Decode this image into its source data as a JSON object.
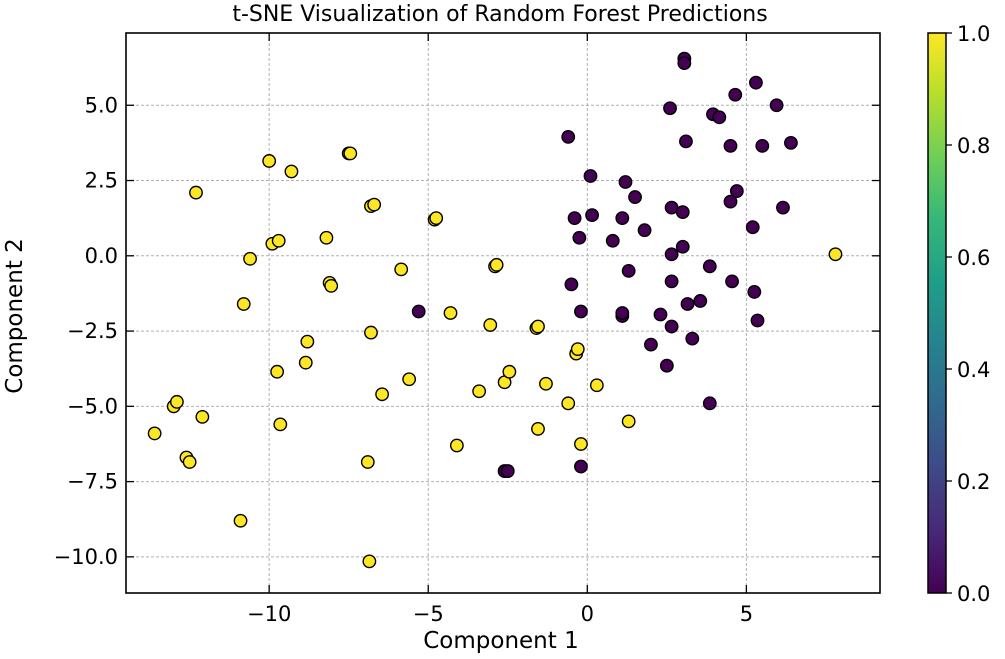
{
  "chart_data": {
    "type": "scatter",
    "title": "t-SNE Visualization of Random Forest Predictions",
    "xlabel": "Component 1",
    "ylabel": "Component 2",
    "xlim": [
      -14.5,
      9.2
    ],
    "ylim": [
      -11.2,
      7.4
    ],
    "xticks": [
      -10,
      -5,
      0,
      5
    ],
    "xtick_labels": [
      "−10",
      "−5",
      "0",
      "5"
    ],
    "yticks": [
      -10.0,
      -7.5,
      -5.0,
      -2.5,
      0.0,
      2.5,
      5.0
    ],
    "ytick_labels": [
      "−10.0",
      "−7.5",
      "−5.0",
      "−2.5",
      "0.0",
      "2.5",
      "5.0"
    ],
    "grid": true,
    "colorbar": {
      "label": "",
      "range": [
        0.0,
        1.0
      ],
      "ticks": [
        0.0,
        0.2,
        0.4,
        0.6,
        0.8,
        1.0
      ],
      "tick_labels": [
        "0.0",
        "0.2",
        "0.4",
        "0.6",
        "0.8",
        "1.0"
      ],
      "colormap": "viridis",
      "stops": [
        "#440154",
        "#482878",
        "#3e4989",
        "#31688e",
        "#26828e",
        "#1f9e89",
        "#35b779",
        "#6ece58",
        "#b5de2b",
        "#fde725"
      ]
    },
    "class_colors": {
      "0": "#440154",
      "1": "#fde725"
    },
    "points": [
      {
        "x": -13.6,
        "y": -5.9,
        "c": 1
      },
      {
        "x": -13.0,
        "y": -5.0,
        "c": 1
      },
      {
        "x": -12.9,
        "y": -4.85,
        "c": 1
      },
      {
        "x": -12.6,
        "y": -6.7,
        "c": 1
      },
      {
        "x": -12.5,
        "y": -6.85,
        "c": 1
      },
      {
        "x": -12.3,
        "y": 2.1,
        "c": 1
      },
      {
        "x": -12.1,
        "y": -5.35,
        "c": 1
      },
      {
        "x": -10.9,
        "y": -8.8,
        "c": 1
      },
      {
        "x": -10.8,
        "y": -1.6,
        "c": 1
      },
      {
        "x": -10.6,
        "y": -0.1,
        "c": 1
      },
      {
        "x": -10.0,
        "y": 3.15,
        "c": 1
      },
      {
        "x": -9.9,
        "y": 0.4,
        "c": 1
      },
      {
        "x": -9.7,
        "y": 0.5,
        "c": 1
      },
      {
        "x": -9.75,
        "y": -3.85,
        "c": 1
      },
      {
        "x": -9.65,
        "y": -5.6,
        "c": 1
      },
      {
        "x": -9.3,
        "y": 2.8,
        "c": 1
      },
      {
        "x": -8.8,
        "y": -2.85,
        "c": 1
      },
      {
        "x": -8.85,
        "y": -3.55,
        "c": 1
      },
      {
        "x": -8.2,
        "y": 0.6,
        "c": 1
      },
      {
        "x": -8.1,
        "y": -0.9,
        "c": 1
      },
      {
        "x": -8.05,
        "y": -1.0,
        "c": 1
      },
      {
        "x": -7.5,
        "y": 3.4,
        "c": 1
      },
      {
        "x": -7.45,
        "y": 3.4,
        "c": 1
      },
      {
        "x": -6.9,
        "y": -6.85,
        "c": 1
      },
      {
        "x": -6.8,
        "y": 1.65,
        "c": 1
      },
      {
        "x": -6.7,
        "y": 1.7,
        "c": 1
      },
      {
        "x": -6.8,
        "y": -2.55,
        "c": 1
      },
      {
        "x": -6.85,
        "y": -10.15,
        "c": 1
      },
      {
        "x": -6.45,
        "y": -4.6,
        "c": 1
      },
      {
        "x": -5.85,
        "y": -0.45,
        "c": 1
      },
      {
        "x": -5.6,
        "y": -4.1,
        "c": 1
      },
      {
        "x": -5.3,
        "y": -1.85,
        "c": 0
      },
      {
        "x": -4.8,
        "y": 1.2,
        "c": 1
      },
      {
        "x": -4.75,
        "y": 1.25,
        "c": 1
      },
      {
        "x": -4.3,
        "y": -1.9,
        "c": 1
      },
      {
        "x": -4.1,
        "y": -6.3,
        "c": 1
      },
      {
        "x": -3.4,
        "y": -4.5,
        "c": 1
      },
      {
        "x": -3.05,
        "y": -2.3,
        "c": 1
      },
      {
        "x": -2.9,
        "y": -0.35,
        "c": 1
      },
      {
        "x": -2.85,
        "y": -0.3,
        "c": 1
      },
      {
        "x": -2.6,
        "y": -4.2,
        "c": 1
      },
      {
        "x": -2.6,
        "y": -7.15,
        "c": 0
      },
      {
        "x": -2.5,
        "y": -7.15,
        "c": 0
      },
      {
        "x": -2.45,
        "y": -3.85,
        "c": 1
      },
      {
        "x": -1.6,
        "y": -2.4,
        "c": 1
      },
      {
        "x": -1.55,
        "y": -2.35,
        "c": 1
      },
      {
        "x": -1.55,
        "y": -5.75,
        "c": 1
      },
      {
        "x": -1.3,
        "y": -4.25,
        "c": 1
      },
      {
        "x": -0.6,
        "y": 3.95,
        "c": 0
      },
      {
        "x": -0.6,
        "y": -4.9,
        "c": 1
      },
      {
        "x": -0.5,
        "y": -0.95,
        "c": 0
      },
      {
        "x": -0.4,
        "y": 1.25,
        "c": 0
      },
      {
        "x": -0.35,
        "y": -3.25,
        "c": 1
      },
      {
        "x": -0.3,
        "y": -3.1,
        "c": 1
      },
      {
        "x": -0.25,
        "y": 0.6,
        "c": 0
      },
      {
        "x": -0.2,
        "y": -1.85,
        "c": 0
      },
      {
        "x": -0.2,
        "y": -6.25,
        "c": 1
      },
      {
        "x": -0.2,
        "y": -7.0,
        "c": 0
      },
      {
        "x": 0.1,
        "y": 2.65,
        "c": 0
      },
      {
        "x": 0.15,
        "y": 1.35,
        "c": 0
      },
      {
        "x": 0.3,
        "y": -4.3,
        "c": 1
      },
      {
        "x": 0.8,
        "y": 0.5,
        "c": 0
      },
      {
        "x": 1.1,
        "y": 1.25,
        "c": 0
      },
      {
        "x": 1.1,
        "y": -2.0,
        "c": 0
      },
      {
        "x": 1.1,
        "y": -1.9,
        "c": 0
      },
      {
        "x": 1.2,
        "y": 2.45,
        "c": 0
      },
      {
        "x": 1.3,
        "y": -0.5,
        "c": 0
      },
      {
        "x": 1.3,
        "y": -5.5,
        "c": 1
      },
      {
        "x": 1.5,
        "y": 1.95,
        "c": 0
      },
      {
        "x": 1.8,
        "y": 0.85,
        "c": 0
      },
      {
        "x": 2.0,
        "y": -2.95,
        "c": 0
      },
      {
        "x": 2.3,
        "y": -1.95,
        "c": 0
      },
      {
        "x": 2.5,
        "y": -3.65,
        "c": 0
      },
      {
        "x": 2.6,
        "y": 4.9,
        "c": 0
      },
      {
        "x": 2.65,
        "y": 1.6,
        "c": 0
      },
      {
        "x": 2.65,
        "y": 0.05,
        "c": 0
      },
      {
        "x": 2.65,
        "y": -0.85,
        "c": 0
      },
      {
        "x": 2.65,
        "y": -2.35,
        "c": 0
      },
      {
        "x": 3.0,
        "y": 1.45,
        "c": 0
      },
      {
        "x": 3.0,
        "y": 0.3,
        "c": 0
      },
      {
        "x": 3.05,
        "y": 6.55,
        "c": 0
      },
      {
        "x": 3.05,
        "y": 6.4,
        "c": 0
      },
      {
        "x": 3.1,
        "y": 3.8,
        "c": 0
      },
      {
        "x": 3.15,
        "y": -1.6,
        "c": 0
      },
      {
        "x": 3.3,
        "y": -2.75,
        "c": 0
      },
      {
        "x": 3.55,
        "y": -1.5,
        "c": 0
      },
      {
        "x": 3.85,
        "y": -0.35,
        "c": 0
      },
      {
        "x": 3.85,
        "y": -4.9,
        "c": 0
      },
      {
        "x": 3.95,
        "y": 4.7,
        "c": 0
      },
      {
        "x": 4.15,
        "y": 4.6,
        "c": 0
      },
      {
        "x": 4.5,
        "y": 3.65,
        "c": 0
      },
      {
        "x": 4.5,
        "y": 1.8,
        "c": 0
      },
      {
        "x": 4.55,
        "y": -0.85,
        "c": 0
      },
      {
        "x": 4.65,
        "y": 5.35,
        "c": 0
      },
      {
        "x": 4.7,
        "y": 2.15,
        "c": 0
      },
      {
        "x": 5.2,
        "y": 0.95,
        "c": 0
      },
      {
        "x": 5.25,
        "y": -1.2,
        "c": 0
      },
      {
        "x": 5.3,
        "y": 5.75,
        "c": 0
      },
      {
        "x": 5.35,
        "y": -2.15,
        "c": 0
      },
      {
        "x": 5.5,
        "y": 3.65,
        "c": 0
      },
      {
        "x": 5.95,
        "y": 5.0,
        "c": 0
      },
      {
        "x": 6.15,
        "y": 1.6,
        "c": 0
      },
      {
        "x": 6.4,
        "y": 3.75,
        "c": 0
      },
      {
        "x": 7.8,
        "y": 0.05,
        "c": 1
      }
    ]
  }
}
